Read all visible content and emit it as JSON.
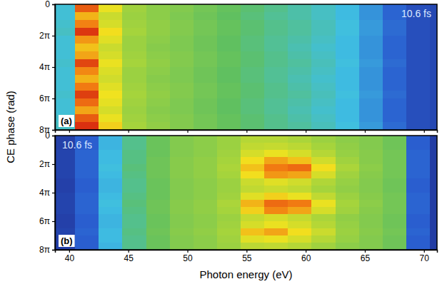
{
  "chart_data": [
    {
      "type": "heatmap",
      "ylabel": "CE phase (rad)",
      "annotations": [
        "(a)",
        "10.6 fs"
      ],
      "xlim": [
        38.8,
        71.1
      ],
      "xticks": [
        40,
        45,
        50,
        55,
        60,
        65,
        70
      ],
      "ylim": [
        0,
        25.133
      ],
      "yticks": [
        0,
        {
          "value": 6.283,
          "label": "2π"
        },
        {
          "value": 12.566,
          "label": "4π"
        },
        {
          "value": 18.85,
          "label": "6π"
        },
        {
          "value": 25.133,
          "label": "8π"
        }
      ],
      "tick_labels": "y",
      "heatmap": {
        "x": [
          39.5,
          41.5,
          43.5,
          45.5,
          47.5,
          49.5,
          51.5,
          53.5,
          55.5,
          57.5,
          59.5,
          61.5,
          63.5,
          65.5,
          67.5,
          69.5,
          71.5
        ],
        "y": [
          0.785,
          2.356,
          3.927,
          5.498,
          7.069,
          8.639,
          10.21,
          11.781,
          13.352,
          14.923,
          16.493,
          18.064,
          19.635,
          21.206,
          22.777,
          24.347
        ],
        "zlim": [
          0,
          1
        ],
        "z": [
          [
            0.3,
            0.9,
            0.7,
            0.56,
            0.52,
            0.5,
            0.47,
            0.44,
            0.41,
            0.38,
            0.35,
            0.32,
            0.28,
            0.22,
            0.15,
            0.1,
            0.08
          ],
          [
            0.3,
            0.78,
            0.64,
            0.55,
            0.52,
            0.49,
            0.46,
            0.43,
            0.4,
            0.37,
            0.35,
            0.32,
            0.28,
            0.22,
            0.15,
            0.1,
            0.08
          ],
          [
            0.31,
            0.85,
            0.66,
            0.56,
            0.53,
            0.5,
            0.47,
            0.44,
            0.41,
            0.38,
            0.36,
            0.33,
            0.29,
            0.23,
            0.16,
            0.1,
            0.08
          ],
          [
            0.32,
            0.95,
            0.72,
            0.57,
            0.53,
            0.5,
            0.47,
            0.44,
            0.41,
            0.38,
            0.36,
            0.33,
            0.29,
            0.23,
            0.16,
            0.1,
            0.08
          ],
          [
            0.3,
            0.82,
            0.68,
            0.55,
            0.52,
            0.49,
            0.46,
            0.43,
            0.4,
            0.37,
            0.35,
            0.32,
            0.28,
            0.22,
            0.15,
            0.1,
            0.08
          ],
          [
            0.3,
            0.76,
            0.64,
            0.55,
            0.51,
            0.49,
            0.46,
            0.43,
            0.4,
            0.37,
            0.34,
            0.31,
            0.28,
            0.22,
            0.15,
            0.1,
            0.08
          ],
          [
            0.3,
            0.8,
            0.66,
            0.56,
            0.52,
            0.5,
            0.47,
            0.44,
            0.41,
            0.38,
            0.35,
            0.32,
            0.28,
            0.22,
            0.15,
            0.1,
            0.08
          ],
          [
            0.31,
            0.93,
            0.7,
            0.57,
            0.53,
            0.5,
            0.47,
            0.44,
            0.41,
            0.38,
            0.36,
            0.33,
            0.29,
            0.23,
            0.16,
            0.1,
            0.08
          ],
          [
            0.3,
            0.84,
            0.67,
            0.55,
            0.52,
            0.49,
            0.46,
            0.43,
            0.4,
            0.37,
            0.35,
            0.32,
            0.28,
            0.22,
            0.15,
            0.1,
            0.08
          ],
          [
            0.3,
            0.78,
            0.65,
            0.55,
            0.51,
            0.49,
            0.46,
            0.43,
            0.4,
            0.37,
            0.34,
            0.31,
            0.28,
            0.22,
            0.15,
            0.1,
            0.08
          ],
          [
            0.3,
            0.86,
            0.68,
            0.56,
            0.52,
            0.5,
            0.47,
            0.44,
            0.41,
            0.38,
            0.35,
            0.32,
            0.28,
            0.22,
            0.15,
            0.1,
            0.08
          ],
          [
            0.31,
            0.94,
            0.71,
            0.57,
            0.53,
            0.5,
            0.47,
            0.44,
            0.41,
            0.38,
            0.36,
            0.33,
            0.29,
            0.23,
            0.16,
            0.1,
            0.08
          ],
          [
            0.3,
            0.88,
            0.69,
            0.56,
            0.52,
            0.49,
            0.46,
            0.43,
            0.4,
            0.37,
            0.35,
            0.32,
            0.28,
            0.22,
            0.15,
            0.1,
            0.08
          ],
          [
            0.3,
            0.8,
            0.66,
            0.55,
            0.51,
            0.49,
            0.46,
            0.43,
            0.4,
            0.37,
            0.34,
            0.31,
            0.28,
            0.22,
            0.15,
            0.1,
            0.08
          ],
          [
            0.31,
            0.9,
            0.7,
            0.56,
            0.52,
            0.5,
            0.47,
            0.44,
            0.41,
            0.38,
            0.35,
            0.32,
            0.28,
            0.22,
            0.15,
            0.1,
            0.08
          ],
          [
            0.32,
            0.96,
            0.74,
            0.57,
            0.53,
            0.5,
            0.47,
            0.44,
            0.41,
            0.38,
            0.36,
            0.33,
            0.29,
            0.23,
            0.16,
            0.1,
            0.08
          ]
        ]
      }
    },
    {
      "type": "heatmap",
      "xlabel": "Photon energy (eV)",
      "annotations": [
        "(b)",
        "10.6 fs"
      ],
      "xlim": [
        38.8,
        71.1
      ],
      "xticks": [
        40,
        45,
        50,
        55,
        60,
        65,
        70
      ],
      "ylim": [
        0,
        25.133
      ],
      "yticks": [
        0,
        {
          "value": 6.283,
          "label": "2π"
        },
        {
          "value": 12.566,
          "label": "4π"
        },
        {
          "value": 18.85,
          "label": "6π"
        },
        {
          "value": 25.133,
          "label": "8π"
        }
      ],
      "heatmap": {
        "x": [
          39.5,
          41.5,
          43.5,
          45.5,
          47.5,
          49.5,
          51.5,
          53.5,
          55.5,
          57.5,
          59.5,
          61.5,
          63.5,
          65.5,
          67.5,
          69.5,
          71.5
        ],
        "y": [
          0.785,
          2.356,
          3.927,
          5.498,
          7.069,
          8.639,
          10.21,
          11.781,
          13.352,
          14.923,
          16.493,
          18.064,
          19.635,
          21.206,
          22.777,
          24.347
        ],
        "zlim": [
          0,
          1
        ],
        "z": [
          [
            0.06,
            0.14,
            0.27,
            0.38,
            0.45,
            0.5,
            0.52,
            0.55,
            0.6,
            0.6,
            0.58,
            0.55,
            0.52,
            0.5,
            0.46,
            0.14,
            0.05
          ],
          [
            0.06,
            0.14,
            0.27,
            0.38,
            0.45,
            0.5,
            0.52,
            0.55,
            0.62,
            0.63,
            0.61,
            0.57,
            0.53,
            0.5,
            0.46,
            0.14,
            0.05
          ],
          [
            0.07,
            0.15,
            0.28,
            0.39,
            0.45,
            0.5,
            0.52,
            0.56,
            0.66,
            0.7,
            0.66,
            0.6,
            0.54,
            0.51,
            0.47,
            0.15,
            0.05
          ],
          [
            0.07,
            0.15,
            0.28,
            0.39,
            0.46,
            0.51,
            0.53,
            0.57,
            0.72,
            0.8,
            0.76,
            0.65,
            0.56,
            0.51,
            0.47,
            0.15,
            0.05
          ],
          [
            0.07,
            0.15,
            0.29,
            0.4,
            0.46,
            0.51,
            0.53,
            0.58,
            0.76,
            0.86,
            0.88,
            0.72,
            0.58,
            0.52,
            0.47,
            0.15,
            0.05
          ],
          [
            0.07,
            0.15,
            0.28,
            0.39,
            0.46,
            0.51,
            0.53,
            0.57,
            0.72,
            0.82,
            0.8,
            0.66,
            0.56,
            0.51,
            0.47,
            0.15,
            0.05
          ],
          [
            0.06,
            0.14,
            0.27,
            0.38,
            0.45,
            0.5,
            0.52,
            0.55,
            0.64,
            0.68,
            0.65,
            0.59,
            0.54,
            0.5,
            0.46,
            0.14,
            0.05
          ],
          [
            0.06,
            0.14,
            0.27,
            0.38,
            0.45,
            0.5,
            0.52,
            0.55,
            0.62,
            0.64,
            0.62,
            0.57,
            0.53,
            0.5,
            0.46,
            0.14,
            0.05
          ],
          [
            0.07,
            0.15,
            0.28,
            0.39,
            0.45,
            0.5,
            0.52,
            0.56,
            0.68,
            0.74,
            0.7,
            0.62,
            0.55,
            0.51,
            0.47,
            0.15,
            0.05
          ],
          [
            0.07,
            0.15,
            0.29,
            0.4,
            0.46,
            0.51,
            0.53,
            0.58,
            0.78,
            0.88,
            0.86,
            0.7,
            0.57,
            0.52,
            0.47,
            0.15,
            0.05
          ],
          [
            0.07,
            0.15,
            0.28,
            0.39,
            0.46,
            0.51,
            0.53,
            0.57,
            0.74,
            0.84,
            0.8,
            0.66,
            0.56,
            0.51,
            0.47,
            0.15,
            0.05
          ],
          [
            0.06,
            0.14,
            0.27,
            0.38,
            0.45,
            0.5,
            0.52,
            0.55,
            0.63,
            0.66,
            0.63,
            0.58,
            0.53,
            0.5,
            0.46,
            0.14,
            0.05
          ],
          [
            0.06,
            0.14,
            0.27,
            0.38,
            0.45,
            0.5,
            0.52,
            0.56,
            0.66,
            0.7,
            0.66,
            0.6,
            0.54,
            0.5,
            0.46,
            0.14,
            0.05
          ],
          [
            0.07,
            0.15,
            0.28,
            0.39,
            0.46,
            0.51,
            0.53,
            0.57,
            0.76,
            0.8,
            0.72,
            0.64,
            0.55,
            0.51,
            0.47,
            0.15,
            0.05
          ],
          [
            0.06,
            0.14,
            0.28,
            0.38,
            0.45,
            0.5,
            0.52,
            0.56,
            0.68,
            0.7,
            0.66,
            0.6,
            0.54,
            0.5,
            0.46,
            0.14,
            0.05
          ],
          [
            0.06,
            0.14,
            0.27,
            0.38,
            0.45,
            0.5,
            0.52,
            0.55,
            0.61,
            0.62,
            0.6,
            0.56,
            0.52,
            0.5,
            0.46,
            0.14,
            0.05
          ]
        ]
      }
    }
  ]
}
